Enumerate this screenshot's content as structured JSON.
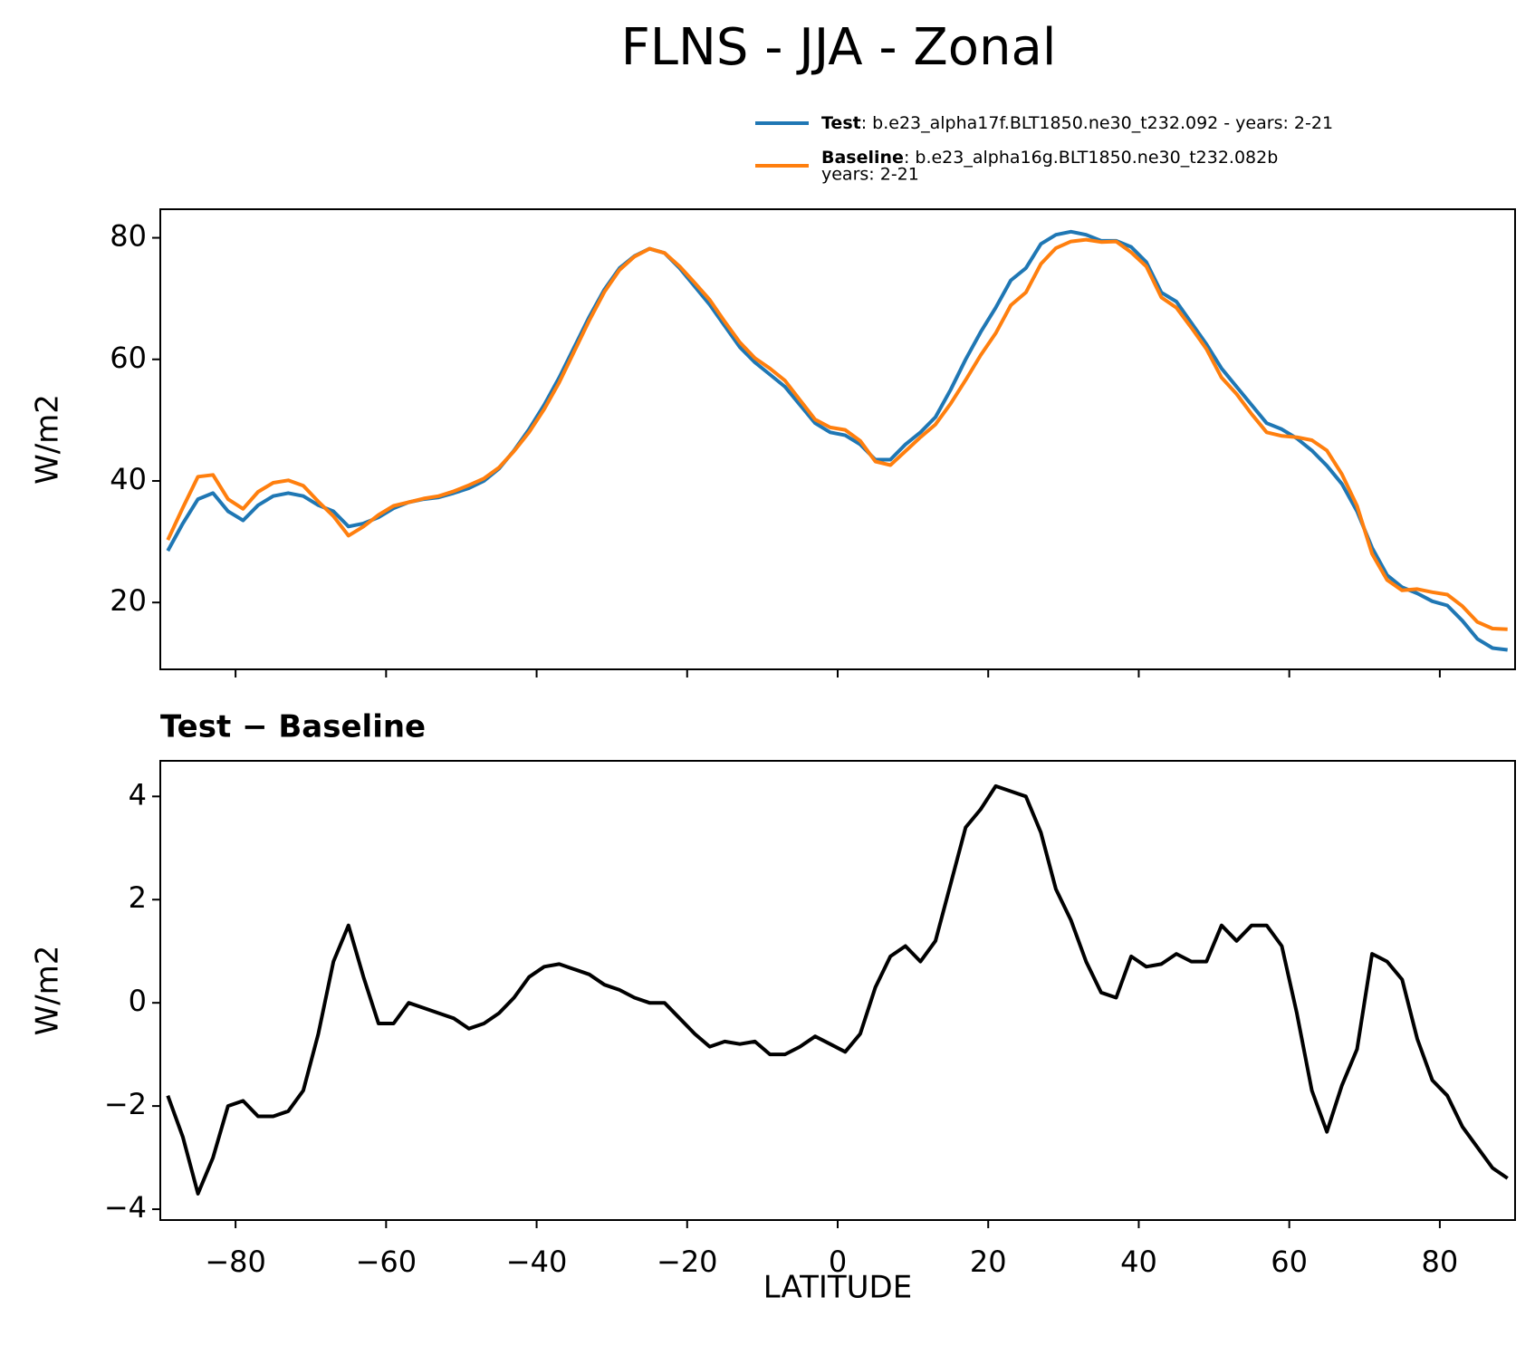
{
  "chart_data": [
    {
      "type": "line",
      "title": "FLNS - JJA - Zonal",
      "ylabel": "W/m2",
      "x": [
        -89,
        -87,
        -85,
        -83,
        -81,
        -79,
        -77,
        -75,
        -73,
        -71,
        -69,
        -67,
        -65,
        -63,
        -61,
        -59,
        -57,
        -55,
        -53,
        -51,
        -49,
        -47,
        -45,
        -43,
        -41,
        -39,
        -37,
        -35,
        -33,
        -31,
        -29,
        -27,
        -25,
        -23,
        -21,
        -19,
        -17,
        -15,
        -13,
        -11,
        -9,
        -7,
        -5,
        -3,
        -1,
        1,
        3,
        5,
        7,
        9,
        11,
        13,
        15,
        17,
        19,
        21,
        23,
        25,
        27,
        29,
        31,
        33,
        35,
        37,
        39,
        41,
        43,
        45,
        47,
        49,
        51,
        53,
        55,
        57,
        59,
        61,
        63,
        65,
        67,
        69,
        71,
        73,
        75,
        77,
        79,
        81,
        83,
        85,
        87,
        89
      ],
      "series": [
        {
          "name": "Test",
          "label": [
            ": b.e23_alpha17f.BLT1850.ne30_t232.092 - years: 2-21"
          ],
          "color": "#1f77b4",
          "values": [
            28.5,
            33,
            37,
            38,
            35,
            33.5,
            36,
            37.5,
            38,
            37.5,
            36,
            35,
            32.5,
            33,
            34,
            35.5,
            36.5,
            37,
            37.3,
            38,
            38.8,
            40,
            42,
            45,
            48.5,
            52.5,
            57,
            62,
            67,
            71.5,
            75,
            77,
            78.2,
            77.5,
            75,
            72,
            69,
            65.5,
            62,
            59.5,
            57.5,
            55.5,
            52.5,
            49.5,
            48,
            47.5,
            46,
            43.5,
            43.5,
            46,
            48,
            50.5,
            55,
            60,
            64.5,
            68.5,
            73,
            75,
            79,
            80.5,
            81,
            80.5,
            79.5,
            79.5,
            78.5,
            76,
            71,
            69.5,
            66,
            62.5,
            58.5,
            55.5,
            52.5,
            49.5,
            48.5,
            47,
            45,
            42.5,
            39.5,
            35,
            29,
            24.5,
            22.5,
            21.5,
            20.2,
            19.5,
            17,
            14,
            12.5,
            12.2
          ]
        },
        {
          "name": "Baseline",
          "label": [
            ": b.e23_alpha16g.BLT1850.ne30_t232.082b",
            "years: 2-21"
          ],
          "color": "#ff7f0e",
          "values": [
            30.3,
            35.6,
            40.7,
            41,
            37,
            35.4,
            38.2,
            39.7,
            40.1,
            39.2,
            36.6,
            34.2,
            31,
            32.5,
            34.4,
            35.9,
            36.5,
            37.1,
            37.5,
            38.3,
            39.3,
            40.4,
            42.2,
            44.9,
            48,
            51.8,
            56.2,
            61.3,
            66.4,
            71.1,
            74.7,
            76.9,
            78.2,
            77.5,
            75.3,
            72.6,
            69.8,
            66.2,
            62.8,
            60.2,
            58.5,
            56.5,
            53.3,
            50.1,
            48.8,
            48.4,
            46.6,
            43.2,
            42.6,
            44.9,
            47.2,
            49.3,
            52.7,
            56.6,
            60.7,
            64.3,
            68.9,
            71,
            75.7,
            78.3,
            79.4,
            79.7,
            79.3,
            79.4,
            77.6,
            75.3,
            70.2,
            68.5,
            65.2,
            61.7,
            57,
            54.3,
            51,
            48,
            47.4,
            47.2,
            46.7,
            45,
            41.1,
            35.9,
            28,
            23.7,
            22,
            22.2,
            21.7,
            21.3,
            19.4,
            16.8,
            15.7,
            15.6
          ]
        }
      ],
      "xlim": [
        -90,
        90
      ],
      "xticks": [
        -80,
        -60,
        -40,
        -20,
        0,
        20,
        40,
        60,
        80
      ],
      "xtick_labels": false,
      "ylim": [
        9,
        84.7
      ],
      "yticks": [
        20,
        40,
        60,
        80
      ],
      "grid": false
    },
    {
      "type": "line",
      "title": "Test − Baseline",
      "ylabel": "W/m2",
      "xlabel": "LATITUDE",
      "x": [
        -89,
        -87,
        -85,
        -83,
        -81,
        -79,
        -77,
        -75,
        -73,
        -71,
        -69,
        -67,
        -65,
        -63,
        -61,
        -59,
        -57,
        -55,
        -53,
        -51,
        -49,
        -47,
        -45,
        -43,
        -41,
        -39,
        -37,
        -35,
        -33,
        -31,
        -29,
        -27,
        -25,
        -23,
        -21,
        -19,
        -17,
        -15,
        -13,
        -11,
        -9,
        -7,
        -5,
        -3,
        -1,
        1,
        3,
        5,
        7,
        9,
        11,
        13,
        15,
        17,
        19,
        21,
        23,
        25,
        27,
        29,
        31,
        33,
        35,
        37,
        39,
        41,
        43,
        45,
        47,
        49,
        51,
        53,
        55,
        57,
        59,
        61,
        63,
        65,
        67,
        69,
        71,
        73,
        75,
        77,
        79,
        81,
        83,
        85,
        87,
        89
      ],
      "series": [
        {
          "color": "#000000",
          "values": [
            -1.8,
            -2.6,
            -3.7,
            -3.0,
            -2.0,
            -1.9,
            -2.2,
            -2.2,
            -2.1,
            -1.7,
            -0.6,
            0.8,
            1.5,
            0.5,
            -0.4,
            -0.4,
            0,
            -0.1,
            -0.2,
            -0.3,
            -0.5,
            -0.4,
            -0.2,
            0.1,
            0.5,
            0.7,
            0.75,
            0.65,
            0.55,
            0.35,
            0.25,
            0.1,
            0.0,
            0.0,
            -0.3,
            -0.6,
            -0.85,
            -0.75,
            -0.8,
            -0.75,
            -1.0,
            -1.0,
            -0.85,
            -0.65,
            -0.8,
            -0.95,
            -0.6,
            0.3,
            0.9,
            1.1,
            0.8,
            1.2,
            2.3,
            3.4,
            3.75,
            4.2,
            4.1,
            4.0,
            3.3,
            2.2,
            1.6,
            0.8,
            0.2,
            0.1,
            0.9,
            0.7,
            0.75,
            0.95,
            0.8,
            0.8,
            1.5,
            1.2,
            1.5,
            1.5,
            1.1,
            -0.2,
            -1.7,
            -2.5,
            -1.6,
            -0.9,
            0.95,
            0.8,
            0.45,
            -0.7,
            -1.5,
            -1.8,
            -2.4,
            -2.8,
            -3.2,
            -3.4
          ]
        }
      ],
      "xlim": [
        -90,
        90
      ],
      "xticks": [
        {
          "value": -80,
          "label": "−80"
        },
        {
          "value": -60,
          "label": "−60"
        },
        {
          "value": -40,
          "label": "−40"
        },
        {
          "value": -20,
          "label": "−20"
        },
        0,
        20,
        40,
        60,
        80
      ],
      "xtick_labels": true,
      "ylim": [
        -4.21,
        4.69
      ],
      "yticks": [
        {
          "value": -4,
          "label": "−4"
        },
        {
          "value": -2,
          "label": "−2"
        },
        0,
        2,
        4
      ],
      "grid": false
    }
  ]
}
